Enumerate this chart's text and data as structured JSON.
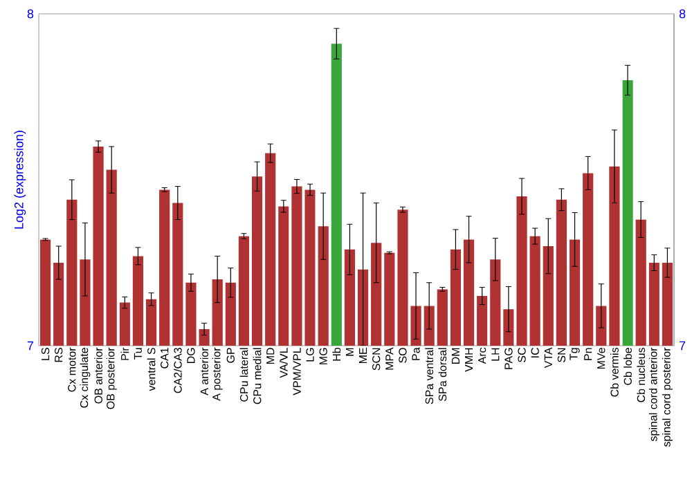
{
  "chart_data": {
    "type": "bar",
    "ylabel": "Log2 (expression)",
    "categories": [
      "LS",
      "RS",
      "Cx motor",
      "Cx cingulate",
      "OB anterior",
      "OB posterior",
      "Pir",
      "Tu",
      "ventral S",
      "CA1",
      "CA2/CA3",
      "DG",
      "A anterior",
      "A posterior",
      "GP",
      "CPu lateral",
      "CPu medial",
      "MD",
      "VA/VL",
      "VPM/VPL",
      "LG",
      "MG",
      "Hb",
      "M",
      "ME",
      "SCN",
      "MPA",
      "SO",
      "Pa",
      "SPa ventral",
      "SPa dorsal",
      "DM",
      "VMH",
      "Arc",
      "LH",
      "PAG",
      "SC",
      "IC",
      "VTA",
      "SN",
      "Tg",
      "Pn",
      "MVe",
      "Cb vermis",
      "Cb lobe",
      "Cb nucleus",
      "spinal cord anterior",
      "spinal cord posterior"
    ],
    "values": [
      7.32,
      7.25,
      7.44,
      7.26,
      7.6,
      7.53,
      7.13,
      7.27,
      7.14,
      7.47,
      7.43,
      7.19,
      7.05,
      7.2,
      7.19,
      7.33,
      7.51,
      7.58,
      7.42,
      7.48,
      7.47,
      7.36,
      7.91,
      7.29,
      7.23,
      7.31,
      7.28,
      7.41,
      7.12,
      7.12,
      7.17,
      7.29,
      7.32,
      7.15,
      7.26,
      7.11,
      7.45,
      7.33,
      7.3,
      7.44,
      7.32,
      7.52,
      7.12,
      7.54,
      7.8,
      7.38,
      7.25,
      7.25
    ],
    "errors": [
      0.003,
      0.05,
      0.06,
      0.11,
      0.017,
      0.07,
      0.017,
      0.026,
      0.019,
      0.006,
      0.05,
      0.026,
      0.018,
      0.07,
      0.044,
      0.008,
      0.044,
      0.028,
      0.018,
      0.021,
      0.017,
      0.1,
      0.046,
      0.076,
      0.23,
      0.12,
      0.003,
      0.008,
      0.1,
      0.07,
      0.006,
      0.06,
      0.07,
      0.026,
      0.064,
      0.068,
      0.054,
      0.024,
      0.083,
      0.033,
      0.081,
      0.05,
      0.066,
      0.11,
      0.045,
      0.054,
      0.024,
      0.044
    ],
    "colors": [
      "#b03232",
      "#b03232",
      "#b03232",
      "#b03232",
      "#b03232",
      "#b03232",
      "#b03232",
      "#b03232",
      "#b03232",
      "#b03232",
      "#b03232",
      "#b03232",
      "#b03232",
      "#b03232",
      "#b03232",
      "#b03232",
      "#b03232",
      "#b03232",
      "#b03232",
      "#b03232",
      "#b03232",
      "#b03232",
      "#3aa63a",
      "#b03232",
      "#b03232",
      "#b03232",
      "#b03232",
      "#b03232",
      "#b03232",
      "#b03232",
      "#b03232",
      "#b03232",
      "#b03232",
      "#b03232",
      "#b03232",
      "#b03232",
      "#b03232",
      "#b03232",
      "#b03232",
      "#b03232",
      "#b03232",
      "#b03232",
      "#b03232",
      "#b03232",
      "#3aa63a",
      "#b03232",
      "#b03232",
      "#b03232"
    ],
    "ylim": [
      7,
      8
    ],
    "yticks": [
      7,
      8
    ],
    "y2lim": [
      7,
      8
    ],
    "y2ticks": [
      7,
      8
    ]
  }
}
